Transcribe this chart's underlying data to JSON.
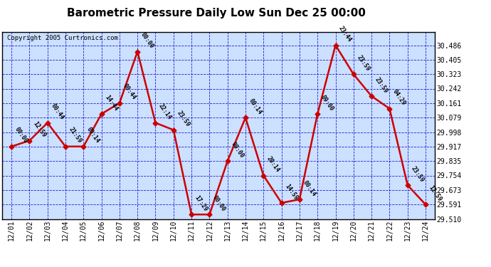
{
  "title": "Barometric Pressure Daily Low Sun Dec 25 00:00",
  "copyright": "Copyright 2005 Curtronics.com",
  "x_labels": [
    "12/01",
    "12/02",
    "12/03",
    "12/04",
    "12/05",
    "12/06",
    "12/07",
    "12/08",
    "12/09",
    "12/10",
    "12/11",
    "12/12",
    "12/13",
    "12/14",
    "12/15",
    "12/16",
    "12/17",
    "12/18",
    "12/19",
    "12/20",
    "12/21",
    "12/22",
    "12/23",
    "12/24"
  ],
  "y_values": [
    29.917,
    29.95,
    30.05,
    29.917,
    29.917,
    30.1,
    30.161,
    30.45,
    30.05,
    30.01,
    29.535,
    29.535,
    29.835,
    30.079,
    29.754,
    29.6,
    29.62,
    30.1,
    30.486,
    30.323,
    30.2,
    30.13,
    29.7,
    29.591
  ],
  "point_labels": [
    "00:00",
    "12:59",
    "00:44",
    "21:59",
    "00:14",
    "14:44",
    "00:44",
    "00:00",
    "22:14",
    "23:59",
    "17:29",
    "00:00",
    "00:00",
    "00:14",
    "20:14",
    "14:59",
    "00:14",
    "09:00",
    "23:44",
    "23:59",
    "23:59",
    "04:29",
    "23:59",
    "12:59"
  ],
  "ylim_min": 29.51,
  "ylim_max": 30.56,
  "yticks": [
    29.51,
    29.591,
    29.673,
    29.754,
    29.835,
    29.917,
    29.998,
    30.079,
    30.161,
    30.242,
    30.323,
    30.405,
    30.486
  ],
  "line_color": "#cc0000",
  "marker_color": "#cc0000",
  "bg_color": "#cce0ff",
  "grid_color": "#0000cc",
  "title_color": "#000000",
  "border_color": "#000000",
  "label_color": "#000000",
  "copyright_color": "#000000"
}
